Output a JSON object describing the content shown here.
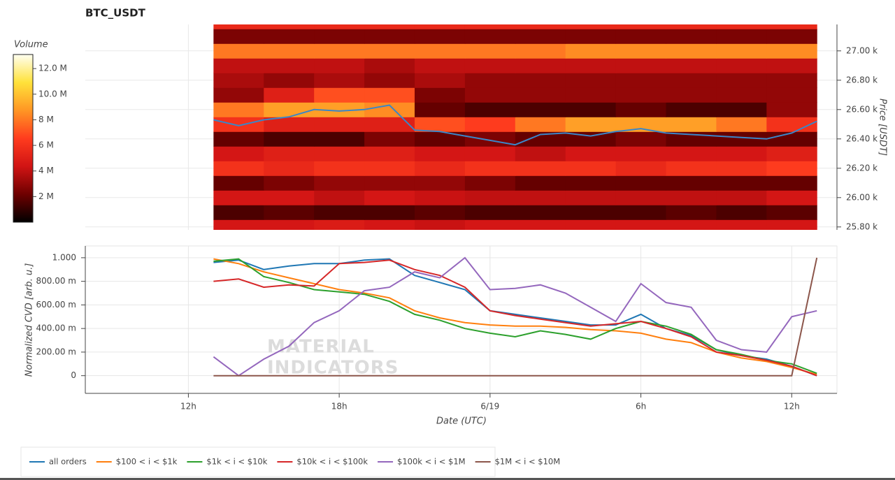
{
  "chart_data": [
    {
      "type": "heatmap",
      "title": "BTC_USDT",
      "ylabel": "Price [USDT]",
      "yaxis_position": "right",
      "colorbar_label": "Volume",
      "xlim": [
        7.9,
        37.8
      ],
      "ylim": [
        25780,
        27180
      ],
      "yticks": [
        {
          "value": 25800,
          "label": "25.80 k"
        },
        {
          "value": 26000,
          "label": "26.00 k"
        },
        {
          "value": 26200,
          "label": "26.20 k"
        },
        {
          "value": 26400,
          "label": "26.40 k"
        },
        {
          "value": 26600,
          "label": "26.60 k"
        },
        {
          "value": 26800,
          "label": "26.80 k"
        },
        {
          "value": 27000,
          "label": "27.00 k"
        }
      ],
      "zlim": [
        0,
        13100000
      ],
      "zticks": [
        {
          "value": 2000000,
          "label": "2 M"
        },
        {
          "value": 4000000,
          "label": "4 M"
        },
        {
          "value": 6000000,
          "label": "6 M"
        },
        {
          "value": 8000000,
          "label": "8 M"
        },
        {
          "value": 10000000,
          "label": "10.0 M"
        },
        {
          "value": 12000000,
          "label": "12.0 M"
        }
      ],
      "colorscale": [
        "#000000",
        "#6e0000",
        "#d11414",
        "#ff3c1e",
        "#ff9624",
        "#ffe23a",
        "#fffff2"
      ],
      "x_edges": [
        13,
        15,
        17,
        19,
        21,
        23,
        25,
        27,
        29,
        31,
        33,
        35,
        37
      ],
      "y_edges": [
        25750,
        25850,
        25950,
        26050,
        26150,
        26250,
        26350,
        26450,
        26550,
        26650,
        26750,
        26850,
        26950,
        27050,
        27150,
        27250
      ],
      "z": [
        [
          4500000,
          4500000,
          4800000,
          4500000,
          4200000,
          4500000,
          4500000,
          4500000,
          4500000,
          4500000,
          4500000,
          4500000
        ],
        [
          1500000,
          1800000,
          1500000,
          1500000,
          1800000,
          1500000,
          1500000,
          1500000,
          1500000,
          1800000,
          1500000,
          1800000
        ],
        [
          4500000,
          4500000,
          4000000,
          4500000,
          4200000,
          4000000,
          4000000,
          4000000,
          4000000,
          4000000,
          4000000,
          4500000
        ],
        [
          2000000,
          2500000,
          3000000,
          3000000,
          3000000,
          2500000,
          2000000,
          2000000,
          2000000,
          2000000,
          2000000,
          2000000
        ],
        [
          6000000,
          5500000,
          6000000,
          6000000,
          5500000,
          6000000,
          6000000,
          6000000,
          5500000,
          6000000,
          6000000,
          6500000
        ],
        [
          4500000,
          5000000,
          5000000,
          5000000,
          4500000,
          4500000,
          4000000,
          4500000,
          4500000,
          4500000,
          4500000,
          5000000
        ],
        [
          2000000,
          1500000,
          1500000,
          2500000,
          2000000,
          2500000,
          2000000,
          2000000,
          2500000,
          2000000,
          2000000,
          2000000
        ],
        [
          6000000,
          5000000,
          5000000,
          5000000,
          7000000,
          6500000,
          8000000,
          9000000,
          9000000,
          9000000,
          8000000,
          6000000
        ],
        [
          8000000,
          9000000,
          9000000,
          8500000,
          2000000,
          1500000,
          1500000,
          1500000,
          2000000,
          1500000,
          1500000,
          3000000
        ],
        [
          3000000,
          5000000,
          7000000,
          7000000,
          2500000,
          3000000,
          3000000,
          3000000,
          3000000,
          3000000,
          3000000,
          3000000
        ],
        [
          3500000,
          3000000,
          3500000,
          3000000,
          3500000,
          3000000,
          3000000,
          3000000,
          3000000,
          3000000,
          3000000,
          3000000
        ],
        [
          4000000,
          4000000,
          4000000,
          3500000,
          4000000,
          4000000,
          4000000,
          4000000,
          4000000,
          4000000,
          4000000,
          4000000
        ],
        [
          8000000,
          8000000,
          8000000,
          8000000,
          8000000,
          8000000,
          8000000,
          8500000,
          8500000,
          8500000,
          8500000,
          8500000
        ],
        [
          2500000,
          2500000,
          2500000,
          2500000,
          2500000,
          2500000,
          2500000,
          2500000,
          2500000,
          2500000,
          2500000,
          2500000
        ],
        [
          5500000,
          5500000,
          5500000,
          5500000,
          5500000,
          5500000,
          5500000,
          5500000,
          5500000,
          5500000,
          5500000,
          5500000
        ]
      ],
      "x": [
        13,
        14,
        15,
        16,
        17,
        18,
        19,
        20,
        21,
        22,
        23,
        24,
        25,
        26,
        27,
        28,
        29,
        30,
        31,
        32,
        33,
        34,
        35,
        36,
        37
      ],
      "line": {
        "color": "#3a86c8",
        "values": [
          26530,
          26490,
          26530,
          26550,
          26600,
          26590,
          26600,
          26630,
          26460,
          26450,
          26420,
          26390,
          26360,
          26430,
          26440,
          26420,
          26450,
          26470,
          26440,
          26430,
          26420,
          26410,
          26400,
          26440,
          26520
        ]
      }
    },
    {
      "type": "line",
      "ylabel": "Normalized CVD [arb. u.]",
      "xlabel": "Date (UTC)",
      "watermark": [
        "MATERIAL",
        "INDICATORS"
      ],
      "xlim": [
        7.9,
        37.8
      ],
      "ylim": [
        -0.15,
        1.1
      ],
      "xticks": [
        {
          "value": 12,
          "label": "12h"
        },
        {
          "value": 18,
          "label": "18h"
        },
        {
          "value": 24,
          "label": "6/19"
        },
        {
          "value": 30,
          "label": "6h"
        },
        {
          "value": 36,
          "label": "12h"
        }
      ],
      "yticks": [
        0,
        {
          "value": 0.2,
          "label": "200.00 m"
        },
        {
          "value": 0.4,
          "label": "400.00 m"
        },
        {
          "value": 0.6,
          "label": "600.00 m"
        },
        {
          "value": 0.8,
          "label": "800.00 m"
        },
        {
          "value": 1,
          "label": "1.000"
        }
      ],
      "grid": true,
      "legend": "bottom",
      "x": [
        13,
        14,
        15,
        16,
        17,
        18,
        19,
        20,
        21,
        22,
        23,
        24,
        25,
        26,
        27,
        28,
        29,
        30,
        31,
        32,
        33,
        34,
        35,
        36,
        37
      ],
      "series": [
        {
          "name": "all orders",
          "color": "#1f77b4",
          "values": [
            0.96,
            0.98,
            0.9,
            0.93,
            0.95,
            0.95,
            0.98,
            0.99,
            0.85,
            0.79,
            0.73,
            0.55,
            0.52,
            0.49,
            0.46,
            0.43,
            0.43,
            0.52,
            0.4,
            0.34,
            0.22,
            0.17,
            0.14,
            0.08,
            0
          ]
        },
        {
          "name": "$100 < i < $1k",
          "color": "#ff7f0e",
          "values": [
            0.99,
            0.95,
            0.88,
            0.83,
            0.78,
            0.73,
            0.7,
            0.66,
            0.55,
            0.49,
            0.45,
            0.43,
            0.42,
            0.42,
            0.41,
            0.39,
            0.38,
            0.36,
            0.31,
            0.28,
            0.2,
            0.15,
            0.12,
            0.07,
            0.01
          ]
        },
        {
          "name": "$1k < i < $10k",
          "color": "#2ca02c",
          "values": [
            0.97,
            0.99,
            0.84,
            0.79,
            0.73,
            0.71,
            0.69,
            0.63,
            0.52,
            0.47,
            0.4,
            0.36,
            0.33,
            0.38,
            0.35,
            0.31,
            0.4,
            0.46,
            0.42,
            0.35,
            0.22,
            0.18,
            0.13,
            0.1,
            0.02
          ]
        },
        {
          "name": "$10k < i < $100k",
          "color": "#d62728",
          "values": [
            0.8,
            0.82,
            0.75,
            0.77,
            0.76,
            0.95,
            0.96,
            0.98,
            0.9,
            0.85,
            0.75,
            0.55,
            0.51,
            0.48,
            0.45,
            0.42,
            0.44,
            0.46,
            0.4,
            0.33,
            0.2,
            0.17,
            0.13,
            0.08,
            0
          ]
        },
        {
          "name": "$100k < i < $1M",
          "color": "#9467bd",
          "values": [
            0.16,
            0,
            0.14,
            0.25,
            0.45,
            0.55,
            0.72,
            0.75,
            0.88,
            0.83,
            1.0,
            0.73,
            0.74,
            0.77,
            0.7,
            0.58,
            0.46,
            0.78,
            0.62,
            0.58,
            0.3,
            0.22,
            0.2,
            0.5,
            0.55
          ]
        },
        {
          "name": "$1M < i < $10M",
          "color": "#8c564b",
          "values": [
            0,
            0,
            0,
            0,
            0,
            0,
            0,
            0,
            0,
            0,
            0,
            0,
            0,
            0,
            0,
            0,
            0,
            0,
            0,
            0,
            0,
            0,
            0,
            0,
            1.0
          ]
        }
      ]
    }
  ]
}
